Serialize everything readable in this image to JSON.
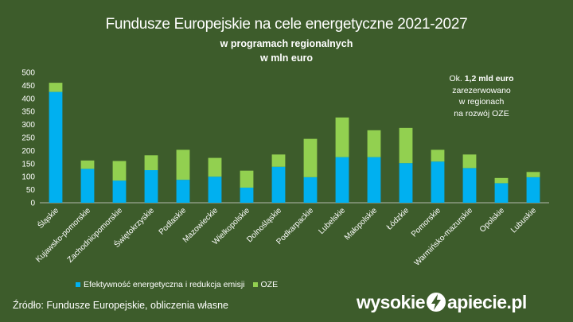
{
  "header": {
    "title": "Fundusze Europejskie na cele energetyczne 2021-2027",
    "subtitle_line1": "w programach  regionalnych",
    "subtitle_line2": "w mln euro"
  },
  "annotation": {
    "line1_prefix": "Ok. ",
    "line1_bold": "1,2 mld euro",
    "line2": "zarezerwowano",
    "line3": "w regionach",
    "line4": "na rozwój OZE"
  },
  "legend": [
    {
      "label": "Efektywność energetyczna i redukcja emisji",
      "color": "#00b0f0"
    },
    {
      "label": "OZE",
      "color": "#92d050"
    }
  ],
  "footer": {
    "source": "Źródło: Fundusze Europejskie, obliczenia własne",
    "logo_left": "wysokie",
    "logo_right": "apiecie.pl"
  },
  "colors": {
    "background": "#3d5c2b",
    "series_efficiency": "#00b0f0",
    "series_oze": "#92d050"
  },
  "chart_data": {
    "type": "bar",
    "stacked": true,
    "title": "Fundusze Europejskie na cele energetyczne 2021-2027",
    "subtitle": "w programach  regionalnych",
    "ylabel": "w mln euro",
    "ylim": [
      0,
      500
    ],
    "yticks": [
      0,
      50,
      100,
      150,
      200,
      250,
      300,
      350,
      400,
      450,
      500
    ],
    "grid": false,
    "legend_position": "bottom",
    "categories": [
      "Śląskie",
      "Kujawsko-pomorskie",
      "Zachodniopomorskie",
      "Świętokrzyskie",
      "Podlaskie",
      "Mazowieckie",
      "Wielkopolskie",
      "Dolnośląskie",
      "Podkarpackie",
      "Lubelskie",
      "Małopolskie",
      "Łódzkie",
      "Pomorskie",
      "Warmińsko-mazurskie",
      "Opolskie",
      "Lubuskie"
    ],
    "series": [
      {
        "name": "Efektywność energetyczna i redukcja emisji",
        "color": "#00b0f0",
        "values": [
          425,
          130,
          85,
          125,
          88,
          100,
          58,
          138,
          98,
          175,
          175,
          152,
          158,
          133,
          75,
          98
        ]
      },
      {
        "name": "OZE",
        "color": "#92d050",
        "values": [
          35,
          32,
          75,
          57,
          115,
          72,
          65,
          47,
          147,
          152,
          103,
          135,
          45,
          52,
          20,
          20
        ]
      }
    ]
  }
}
